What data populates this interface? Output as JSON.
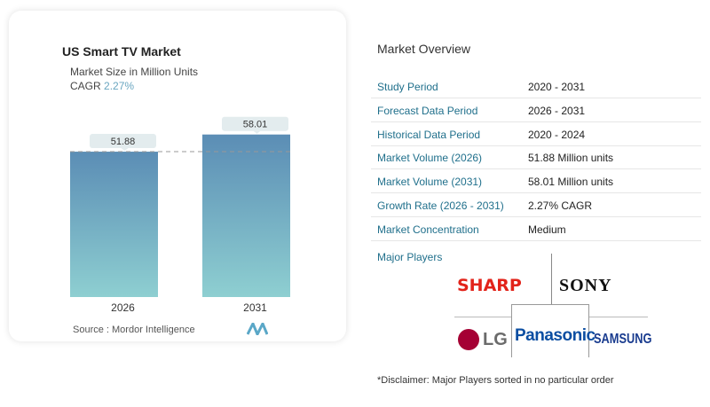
{
  "card": {
    "title": "US Smart TV Market",
    "subtitle": "Market Size in Million Units",
    "cagr_label": "CAGR",
    "cagr_value": "2.27%",
    "source": "Source :  Mordor Intelligence"
  },
  "chart_data": {
    "type": "bar",
    "categories": [
      "2026",
      "2031"
    ],
    "values": [
      51.88,
      58.01
    ],
    "data_labels": [
      "51.88",
      "58.01"
    ],
    "ylim": [
      0,
      106
    ],
    "grid": false,
    "reference_line": 51.88,
    "colors": {
      "bar_top": "#5b8db5",
      "bar_bottom": "#8ecfd1"
    }
  },
  "overview": {
    "title": "Market Overview",
    "rows": [
      {
        "label": "Study Period",
        "value": "2020 - 2031"
      },
      {
        "label": "Forecast Data Period",
        "value": "2026 - 2031"
      },
      {
        "label": "Historical Data Period",
        "value": "2020 - 2024"
      },
      {
        "label": "Market Volume (2026)",
        "value": "51.88 Million units"
      },
      {
        "label": "Market Volume (2031)",
        "value": "58.01 Million units"
      },
      {
        "label": "Growth Rate (2026 - 2031)",
        "value": "2.27% CAGR"
      },
      {
        "label": "Market Concentration",
        "value": "Medium"
      }
    ],
    "major_players_label": "Major Players",
    "players": [
      "SHARP",
      "SONY",
      "LG",
      "Panasonic",
      "SAMSUNG"
    ],
    "disclaimer": "*Disclaimer: Major Players sorted in no particular order"
  }
}
